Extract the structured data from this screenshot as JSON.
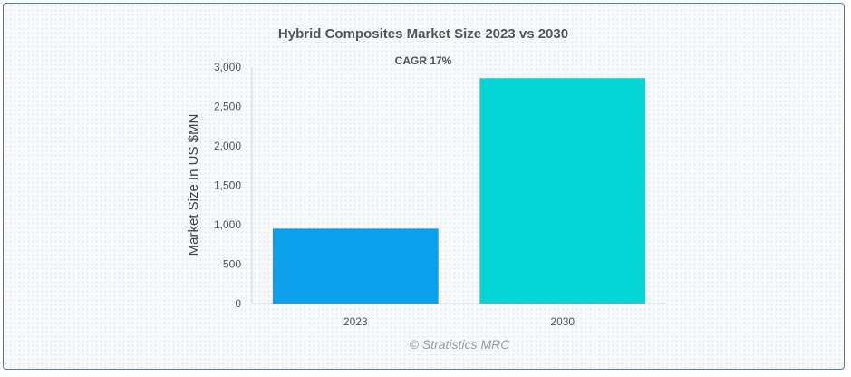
{
  "chart_data": {
    "type": "bar",
    "title": "Hybrid Composites Market Size 2023 vs 2030",
    "subtitle": "CAGR 17%",
    "xlabel": "",
    "ylabel": "Market Size In US $MN",
    "categories": [
      "2023",
      "2030"
    ],
    "values": [
      950,
      2860
    ],
    "colors": [
      "#0aa0ec",
      "#05d5d5"
    ],
    "ylim": [
      0,
      3000
    ],
    "yticks": [
      0,
      500,
      1000,
      1500,
      2000,
      2500,
      3000
    ],
    "ytick_labels": [
      "0",
      "500",
      "1,000",
      "1,500",
      "2,000",
      "2,500",
      "3,000"
    ],
    "grid": false,
    "legend": "none"
  },
  "credit": "© Stratistics MRC"
}
